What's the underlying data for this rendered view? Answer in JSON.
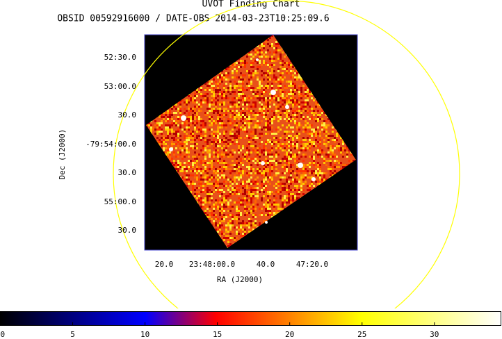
{
  "chart_data": {
    "type": "image",
    "title": "UVOT Finding Chart",
    "subtitle": "OBSID 00592916000 / DATE-OBS 2014-03-23T10:25:09.6",
    "x_label": "RA (J2000)",
    "y_label": "Dec (J2000)",
    "x_tick_labels": [
      "20.0",
      "23:48:00.0",
      "40.0",
      "47:20.0"
    ],
    "y_tick_labels": [
      "52:30.0",
      "53:00.0",
      "30.0",
      "-79:54:00.0",
      "30.0",
      "55:00.0",
      "30.0"
    ],
    "colorbar": {
      "lim": [
        0,
        34.6
      ],
      "ticks": [
        0,
        5,
        10,
        15,
        20,
        25,
        30
      ]
    }
  }
}
